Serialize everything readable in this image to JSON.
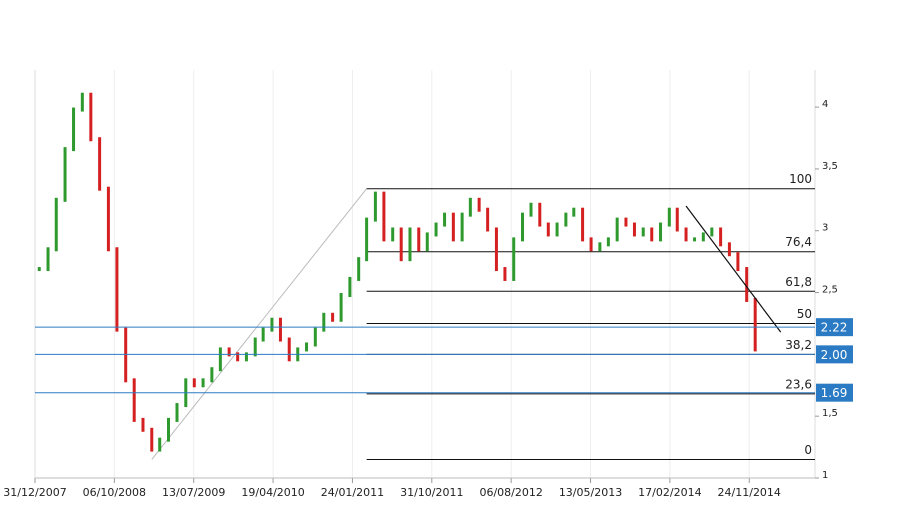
{
  "chart_data": {
    "type": "price",
    "x": [
      "2008-01",
      "2008-02",
      "2008-03",
      "2008-04",
      "2008-05",
      "2008-06",
      "2008-07",
      "2008-08",
      "2008-09",
      "2008-10",
      "2008-11",
      "2008-12",
      "2009-01",
      "2009-02",
      "2009-03",
      "2009-04",
      "2009-05",
      "2009-06",
      "2009-07",
      "2009-08",
      "2009-09",
      "2009-10",
      "2009-11",
      "2009-12",
      "2010-01",
      "2010-02",
      "2010-03",
      "2010-04",
      "2010-05",
      "2010-06",
      "2010-07",
      "2010-08",
      "2010-09",
      "2010-10",
      "2010-11",
      "2010-12",
      "2011-01",
      "2011-02",
      "2011-03",
      "2011-04",
      "2011-05",
      "2011-06",
      "2011-07",
      "2011-08",
      "2011-09",
      "2011-10",
      "2011-11",
      "2011-12",
      "2012-01",
      "2012-02",
      "2012-03",
      "2012-04",
      "2012-05",
      "2012-06",
      "2012-07",
      "2012-08",
      "2012-09",
      "2012-10",
      "2012-11",
      "2012-12",
      "2013-01",
      "2013-02",
      "2013-03",
      "2013-04",
      "2013-05",
      "2013-06",
      "2013-07",
      "2013-08",
      "2013-09",
      "2013-10",
      "2013-11",
      "2013-12",
      "2014-01",
      "2014-02",
      "2014-03",
      "2014-04",
      "2014-05",
      "2014-06",
      "2014-07",
      "2014-08",
      "2014-09",
      "2014-10",
      "2014-11",
      "2014-12"
    ],
    "values": [
      2.69,
      2.85,
      3.25,
      3.66,
      3.98,
      4.1,
      3.74,
      3.34,
      2.85,
      2.2,
      1.79,
      1.47,
      1.39,
      1.23,
      1.31,
      1.47,
      1.59,
      1.79,
      1.75,
      1.79,
      1.88,
      2.04,
      2.0,
      1.96,
      2.0,
      2.12,
      2.2,
      2.28,
      2.12,
      1.96,
      2.04,
      2.08,
      2.2,
      2.32,
      2.28,
      2.48,
      2.61,
      2.77,
      3.09,
      3.3,
      2.93,
      3.01,
      2.77,
      3.01,
      2.85,
      2.97,
      3.05,
      3.13,
      2.93,
      3.13,
      3.25,
      3.17,
      3.01,
      2.69,
      2.61,
      2.93,
      3.13,
      3.21,
      3.05,
      2.97,
      3.05,
      3.13,
      3.17,
      2.93,
      2.85,
      2.89,
      2.93,
      3.09,
      3.05,
      2.97,
      3.01,
      2.93,
      3.05,
      3.17,
      3.01,
      2.93,
      2.93,
      2.97,
      3.01,
      2.89,
      2.81,
      2.69,
      2.44,
      2.04
    ],
    "color_up": "#2e9a2e",
    "color_down": "#d42020",
    "xlim": [
      "2007-12-31",
      "2015-07-14"
    ],
    "xticks": [
      {
        "value": "2007-12-31",
        "label": "31/12/2007"
      },
      {
        "value": "2008-10-06",
        "label": "06/10/2008"
      },
      {
        "value": "2009-07-13",
        "label": "13/07/2009"
      },
      {
        "value": "2010-04-19",
        "label": "19/04/2010"
      },
      {
        "value": "2011-01-24",
        "label": "24/01/2011"
      },
      {
        "value": "2011-10-31",
        "label": "31/10/2011"
      },
      {
        "value": "2012-08-06",
        "label": "06/08/2012"
      },
      {
        "value": "2013-05-13",
        "label": "13/05/2013"
      },
      {
        "value": "2014-02-17",
        "label": "17/02/2014"
      },
      {
        "value": "2014-11-24",
        "label": "24/11/2014"
      }
    ],
    "ylim": [
      1,
      4.3
    ],
    "yticks": [
      4,
      {
        "value": 3.5,
        "label": "3,5"
      },
      3,
      {
        "value": 2.5,
        "label": "2,5"
      },
      {
        "value": 1.5,
        "label": "1,5"
      },
      1
    ],
    "grid": true,
    "price_levels": [
      2.22,
      {
        "value": 2,
        "label": "2.00"
      },
      1.69
    ],
    "price_level_color": "#2a7bc4",
    "fibonacci": {
      "from": {
        "x": "2009-02",
        "y": 1.15
      },
      "to": {
        "x": "2011-03",
        "y": 3.34
      },
      "levels": [
        {
          "label": "100",
          "value": 3.34
        },
        {
          "label": "76,4",
          "value": 2.83
        },
        {
          "label": "61,8",
          "value": 2.51
        },
        {
          "label": "50",
          "value": 2.25
        },
        {
          "label": "38,2",
          "value": 2.0
        },
        {
          "label": "23,6",
          "value": 1.68
        },
        {
          "label": "0",
          "value": 1.15
        }
      ]
    },
    "trendline": {
      "x": [
        "2014-04",
        "2015-03"
      ],
      "y": [
        3.2,
        2.18
      ]
    }
  }
}
